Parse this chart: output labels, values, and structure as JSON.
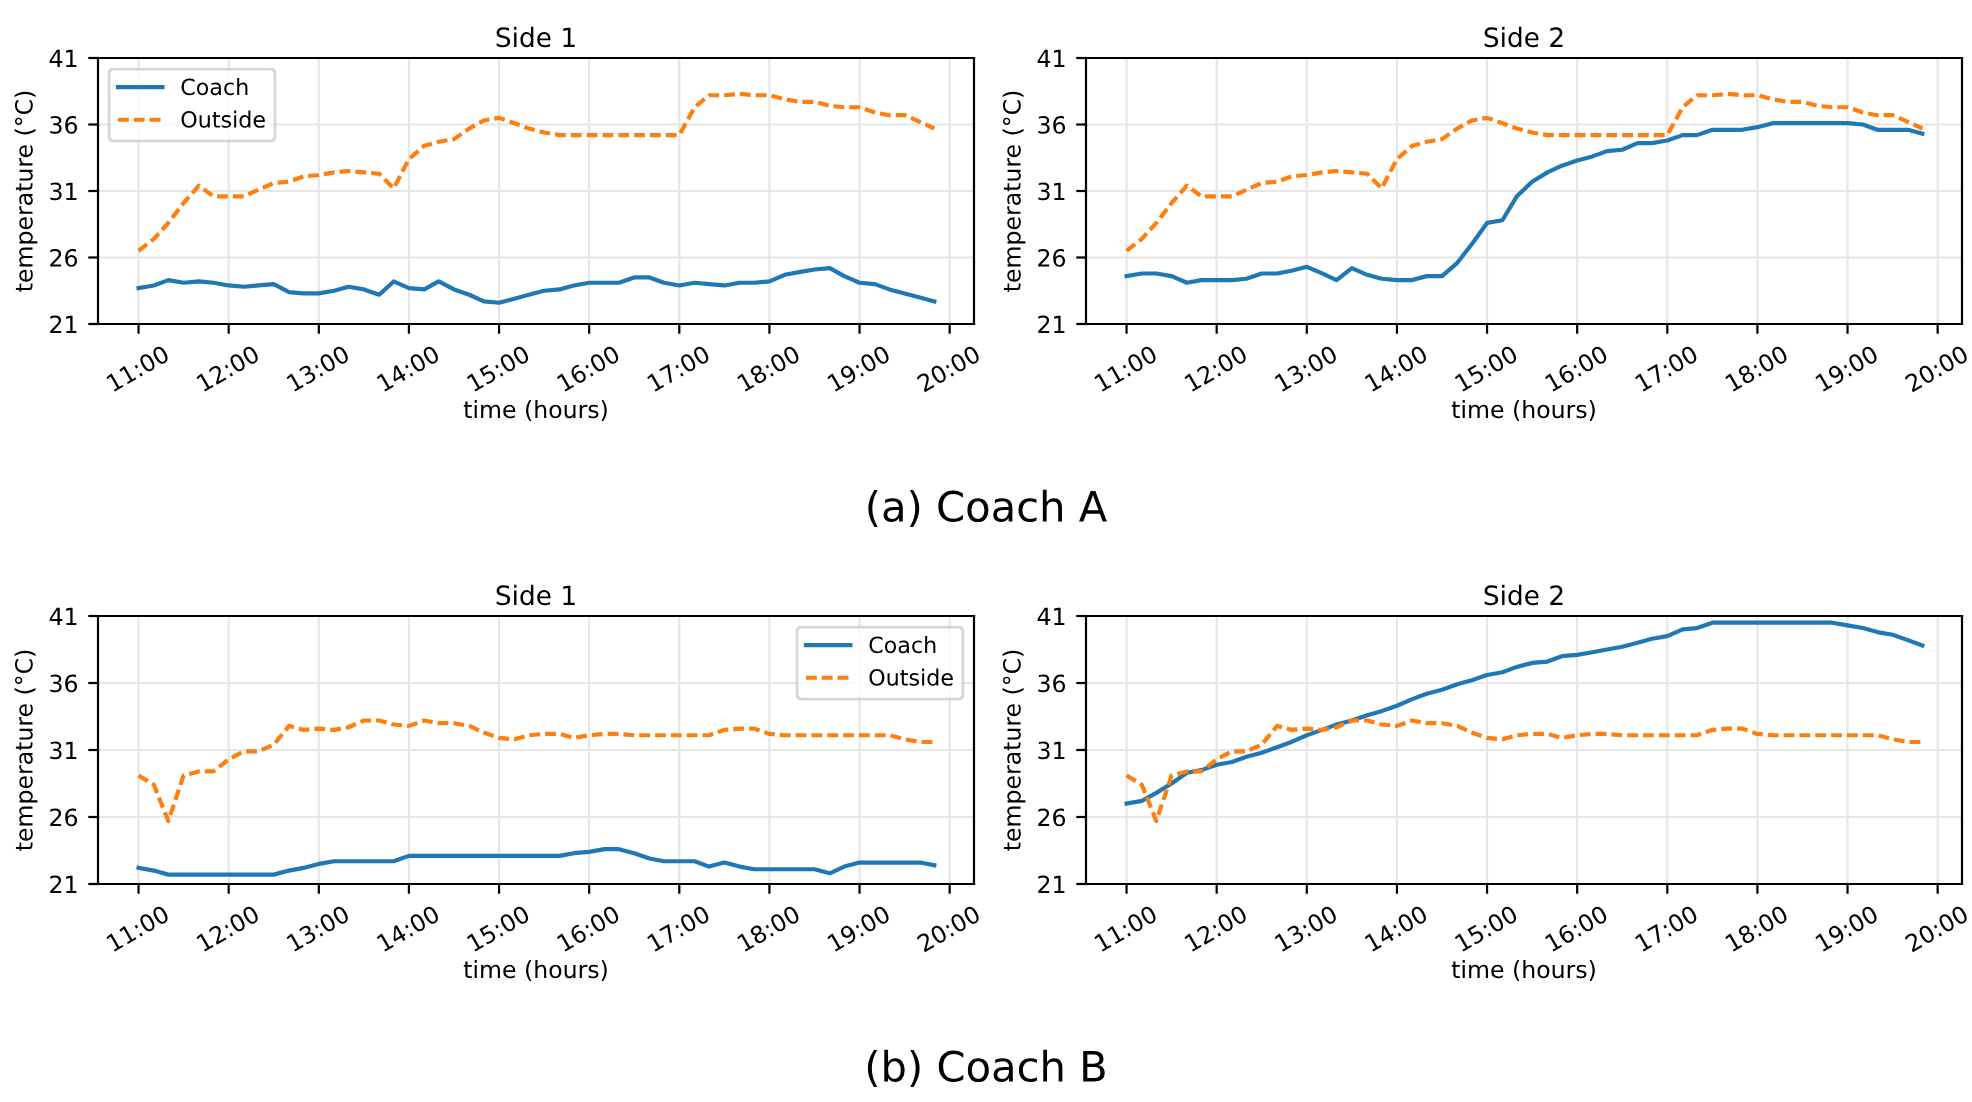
{
  "chart_data": [
    {
      "type": "line",
      "title": "Side 1",
      "xlabel": "time (hours)",
      "ylabel": "temperature (°C)",
      "annotations": [
        "(a) Coach A"
      ],
      "x": [
        11,
        11.17,
        11.33,
        11.5,
        11.67,
        11.83,
        12,
        12.17,
        12.33,
        12.5,
        12.67,
        12.83,
        13,
        13.17,
        13.33,
        13.5,
        13.67,
        13.83,
        14,
        14.17,
        14.33,
        14.5,
        14.67,
        14.83,
        15,
        15.17,
        15.33,
        15.5,
        15.67,
        15.83,
        16,
        16.17,
        16.33,
        16.5,
        16.67,
        16.83,
        17,
        17.17,
        17.33,
        17.5,
        17.67,
        17.83,
        18,
        18.17,
        18.33,
        18.5,
        18.67,
        18.83,
        19,
        19.17,
        19.33,
        19.5,
        19.67,
        19.83
      ],
      "series": [
        {
          "name": "Coach",
          "color": "#1f77b4",
          "line_style": "solid",
          "values": [
            23.7,
            23.9,
            24.3,
            24.1,
            24.2,
            24.1,
            23.9,
            23.8,
            23.9,
            24.0,
            23.4,
            23.3,
            23.3,
            23.5,
            23.8,
            23.6,
            23.2,
            24.2,
            23.7,
            23.6,
            24.2,
            23.6,
            23.2,
            22.7,
            22.6,
            22.9,
            23.2,
            23.5,
            23.6,
            23.9,
            24.1,
            24.1,
            24.1,
            24.5,
            24.5,
            24.1,
            23.9,
            24.1,
            24.0,
            23.9,
            24.1,
            24.1,
            24.2,
            24.7,
            24.9,
            25.1,
            25.2,
            24.6,
            24.1,
            24.0,
            23.6,
            23.3,
            23.0,
            22.7
          ]
        },
        {
          "name": "Outside",
          "color": "#ff7f0e",
          "line_style": "dashed",
          "values": [
            26.5,
            27.4,
            28.6,
            30.1,
            31.4,
            30.6,
            30.6,
            30.6,
            31.1,
            31.6,
            31.7,
            32.1,
            32.2,
            32.4,
            32.5,
            32.4,
            32.3,
            31.2,
            33.4,
            34.4,
            34.7,
            34.9,
            35.7,
            36.3,
            36.5,
            36.1,
            35.7,
            35.4,
            35.2,
            35.2,
            35.2,
            35.2,
            35.2,
            35.2,
            35.2,
            35.2,
            35.2,
            37.3,
            38.2,
            38.2,
            38.3,
            38.2,
            38.2,
            37.9,
            37.7,
            37.7,
            37.4,
            37.3,
            37.3,
            36.9,
            36.7,
            36.7,
            36.2,
            35.7
          ]
        }
      ],
      "xlim": [
        10.55,
        20.27
      ],
      "xticks": [
        {
          "value": 11,
          "label": "11:00"
        },
        {
          "value": 12,
          "label": "12:00"
        },
        {
          "value": 13,
          "label": "13:00"
        },
        {
          "value": 14,
          "label": "14:00"
        },
        {
          "value": 15,
          "label": "15:00"
        },
        {
          "value": 16,
          "label": "16:00"
        },
        {
          "value": 17,
          "label": "17:00"
        },
        {
          "value": 18,
          "label": "18:00"
        },
        {
          "value": 19,
          "label": "19:00"
        },
        {
          "value": 20,
          "label": "20:00"
        }
      ],
      "ylim": [
        21,
        41
      ],
      "yticks": [
        21,
        26,
        31,
        36,
        41
      ],
      "grid": true,
      "legend": "top left"
    },
    {
      "type": "line",
      "title": "Side 2",
      "xlabel": "time (hours)",
      "ylabel": "temperature (°C)",
      "x": [
        11,
        11.17,
        11.33,
        11.5,
        11.67,
        11.83,
        12,
        12.17,
        12.33,
        12.5,
        12.67,
        12.83,
        13,
        13.17,
        13.33,
        13.5,
        13.67,
        13.83,
        14,
        14.17,
        14.33,
        14.5,
        14.67,
        14.83,
        15,
        15.17,
        15.33,
        15.5,
        15.67,
        15.83,
        16,
        16.17,
        16.33,
        16.5,
        16.67,
        16.83,
        17,
        17.17,
        17.33,
        17.5,
        17.67,
        17.83,
        18,
        18.17,
        18.33,
        18.5,
        18.67,
        18.83,
        19,
        19.17,
        19.33,
        19.5,
        19.67,
        19.83
      ],
      "series": [
        {
          "color": "#1f77b4",
          "line_style": "solid",
          "values": [
            24.6,
            24.8,
            24.8,
            24.6,
            24.1,
            24.3,
            24.3,
            24.3,
            24.4,
            24.8,
            24.8,
            25.0,
            25.3,
            24.8,
            24.3,
            25.2,
            24.7,
            24.4,
            24.3,
            24.3,
            24.6,
            24.6,
            25.6,
            27.0,
            28.6,
            28.8,
            30.6,
            31.7,
            32.4,
            32.9,
            33.3,
            33.6,
            34.0,
            34.1,
            34.6,
            34.6,
            34.8,
            35.2,
            35.2,
            35.6,
            35.6,
            35.6,
            35.8,
            36.1,
            36.1,
            36.1,
            36.1,
            36.1,
            36.1,
            36.0,
            35.6,
            35.6,
            35.6,
            35.3
          ]
        },
        {
          "color": "#ff7f0e",
          "line_style": "dashed",
          "values": [
            26.5,
            27.4,
            28.6,
            30.1,
            31.4,
            30.6,
            30.6,
            30.6,
            31.1,
            31.6,
            31.7,
            32.1,
            32.2,
            32.4,
            32.5,
            32.4,
            32.3,
            31.2,
            33.4,
            34.4,
            34.7,
            34.9,
            35.7,
            36.3,
            36.5,
            36.1,
            35.7,
            35.4,
            35.2,
            35.2,
            35.2,
            35.2,
            35.2,
            35.2,
            35.2,
            35.2,
            35.2,
            37.3,
            38.2,
            38.2,
            38.3,
            38.2,
            38.2,
            37.9,
            37.7,
            37.7,
            37.4,
            37.3,
            37.3,
            36.9,
            36.7,
            36.7,
            36.2,
            35.7
          ]
        }
      ],
      "xlim": [
        10.55,
        20.27
      ],
      "xticks": [
        {
          "value": 11,
          "label": "11:00"
        },
        {
          "value": 12,
          "label": "12:00"
        },
        {
          "value": 13,
          "label": "13:00"
        },
        {
          "value": 14,
          "label": "14:00"
        },
        {
          "value": 15,
          "label": "15:00"
        },
        {
          "value": 16,
          "label": "16:00"
        },
        {
          "value": 17,
          "label": "17:00"
        },
        {
          "value": 18,
          "label": "18:00"
        },
        {
          "value": 19,
          "label": "19:00"
        },
        {
          "value": 20,
          "label": "20:00"
        }
      ],
      "ylim": [
        21,
        41
      ],
      "yticks": [
        21,
        26,
        31,
        36,
        41
      ],
      "grid": true
    },
    {
      "type": "line",
      "title": "Side 1",
      "xlabel": "time (hours)",
      "ylabel": "temperature (°C)",
      "annotations": [
        "(b) Coach B"
      ],
      "x": [
        11,
        11.17,
        11.33,
        11.5,
        11.67,
        11.83,
        12,
        12.17,
        12.33,
        12.5,
        12.67,
        12.83,
        13,
        13.17,
        13.33,
        13.5,
        13.67,
        13.83,
        14,
        14.17,
        14.33,
        14.5,
        14.67,
        14.83,
        15,
        15.17,
        15.33,
        15.5,
        15.67,
        15.83,
        16,
        16.17,
        16.33,
        16.5,
        16.67,
        16.83,
        17,
        17.17,
        17.33,
        17.5,
        17.67,
        17.83,
        18,
        18.17,
        18.33,
        18.5,
        18.67,
        18.83,
        19,
        19.17,
        19.33,
        19.5,
        19.67,
        19.83
      ],
      "series": [
        {
          "name": "Coach",
          "color": "#1f77b4",
          "line_style": "solid",
          "values": [
            22.2,
            22.0,
            21.7,
            21.7,
            21.7,
            21.7,
            21.7,
            21.7,
            21.7,
            21.7,
            22.0,
            22.2,
            22.5,
            22.7,
            22.7,
            22.7,
            22.7,
            22.7,
            23.1,
            23.1,
            23.1,
            23.1,
            23.1,
            23.1,
            23.1,
            23.1,
            23.1,
            23.1,
            23.1,
            23.3,
            23.4,
            23.6,
            23.6,
            23.3,
            22.9,
            22.7,
            22.7,
            22.7,
            22.3,
            22.6,
            22.3,
            22.1,
            22.1,
            22.1,
            22.1,
            22.1,
            21.8,
            22.3,
            22.6,
            22.6,
            22.6,
            22.6,
            22.6,
            22.4
          ]
        },
        {
          "name": "Outside",
          "color": "#ff7f0e",
          "line_style": "dashed",
          "values": [
            29.1,
            28.4,
            25.7,
            29.1,
            29.4,
            29.4,
            30.3,
            30.9,
            30.9,
            31.4,
            32.8,
            32.5,
            32.6,
            32.5,
            32.7,
            33.2,
            33.2,
            32.9,
            32.8,
            33.2,
            33.0,
            33.0,
            32.8,
            32.3,
            31.9,
            31.8,
            32.1,
            32.2,
            32.2,
            31.9,
            32.1,
            32.2,
            32.2,
            32.1,
            32.1,
            32.1,
            32.1,
            32.1,
            32.1,
            32.5,
            32.6,
            32.6,
            32.2,
            32.1,
            32.1,
            32.1,
            32.1,
            32.1,
            32.1,
            32.1,
            32.1,
            31.8,
            31.6,
            31.6
          ]
        }
      ],
      "xlim": [
        10.55,
        20.27
      ],
      "xticks": [
        {
          "value": 11,
          "label": "11:00"
        },
        {
          "value": 12,
          "label": "12:00"
        },
        {
          "value": 13,
          "label": "13:00"
        },
        {
          "value": 14,
          "label": "14:00"
        },
        {
          "value": 15,
          "label": "15:00"
        },
        {
          "value": 16,
          "label": "16:00"
        },
        {
          "value": 17,
          "label": "17:00"
        },
        {
          "value": 18,
          "label": "18:00"
        },
        {
          "value": 19,
          "label": "19:00"
        },
        {
          "value": 20,
          "label": "20:00"
        }
      ],
      "ylim": [
        21,
        41
      ],
      "yticks": [
        21,
        26,
        31,
        36,
        41
      ],
      "grid": true,
      "legend": "top right"
    },
    {
      "type": "line",
      "title": "Side 2",
      "xlabel": "time (hours)",
      "ylabel": "temperature (°C)",
      "x": [
        11,
        11.17,
        11.33,
        11.5,
        11.67,
        11.83,
        12,
        12.17,
        12.33,
        12.5,
        12.67,
        12.83,
        13,
        13.17,
        13.33,
        13.5,
        13.67,
        13.83,
        14,
        14.17,
        14.33,
        14.5,
        14.67,
        14.83,
        15,
        15.17,
        15.33,
        15.5,
        15.67,
        15.83,
        16,
        16.17,
        16.33,
        16.5,
        16.67,
        16.83,
        17,
        17.17,
        17.33,
        17.5,
        17.67,
        17.83,
        18,
        18.17,
        18.33,
        18.5,
        18.67,
        18.83,
        19,
        19.17,
        19.33,
        19.5,
        19.67,
        19.83
      ],
      "series": [
        {
          "color": "#1f77b4",
          "line_style": "solid",
          "values": [
            27.0,
            27.2,
            27.8,
            28.5,
            29.3,
            29.5,
            29.9,
            30.1,
            30.5,
            30.8,
            31.2,
            31.6,
            32.1,
            32.5,
            32.9,
            33.2,
            33.6,
            33.9,
            34.3,
            34.8,
            35.2,
            35.5,
            35.9,
            36.2,
            36.6,
            36.8,
            37.2,
            37.5,
            37.6,
            38.0,
            38.1,
            38.3,
            38.5,
            38.7,
            39.0,
            39.3,
            39.5,
            40.0,
            40.1,
            40.5,
            40.5,
            40.5,
            40.5,
            40.5,
            40.5,
            40.5,
            40.5,
            40.5,
            40.3,
            40.1,
            39.8,
            39.6,
            39.2,
            38.8
          ]
        },
        {
          "color": "#ff7f0e",
          "line_style": "dashed",
          "values": [
            29.1,
            28.4,
            25.7,
            29.1,
            29.4,
            29.4,
            30.3,
            30.9,
            30.9,
            31.4,
            32.8,
            32.5,
            32.6,
            32.5,
            32.7,
            33.2,
            33.2,
            32.9,
            32.8,
            33.2,
            33.0,
            33.0,
            32.8,
            32.3,
            31.9,
            31.8,
            32.1,
            32.2,
            32.2,
            31.9,
            32.1,
            32.2,
            32.2,
            32.1,
            32.1,
            32.1,
            32.1,
            32.1,
            32.1,
            32.5,
            32.6,
            32.6,
            32.2,
            32.1,
            32.1,
            32.1,
            32.1,
            32.1,
            32.1,
            32.1,
            32.1,
            31.8,
            31.6,
            31.6
          ]
        }
      ],
      "xlim": [
        10.55,
        20.27
      ],
      "xticks": [
        {
          "value": 11,
          "label": "11:00"
        },
        {
          "value": 12,
          "label": "12:00"
        },
        {
          "value": 13,
          "label": "13:00"
        },
        {
          "value": 14,
          "label": "14:00"
        },
        {
          "value": 15,
          "label": "15:00"
        },
        {
          "value": 16,
          "label": "16:00"
        },
        {
          "value": 17,
          "label": "17:00"
        },
        {
          "value": 18,
          "label": "18:00"
        },
        {
          "value": 19,
          "label": "19:00"
        },
        {
          "value": 20,
          "label": "20:00"
        }
      ],
      "ylim": [
        21,
        41
      ],
      "yticks": [
        21,
        26,
        31,
        36,
        41
      ],
      "grid": true
    }
  ]
}
